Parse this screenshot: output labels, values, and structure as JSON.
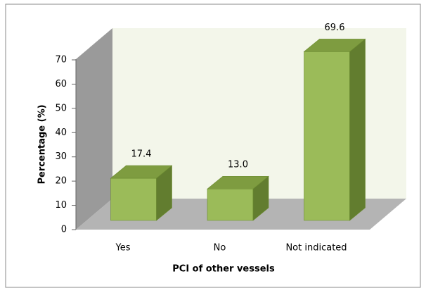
{
  "chart_data": {
    "type": "bar3d",
    "categories": [
      "Yes",
      "No",
      "Not indicated"
    ],
    "values": [
      17.4,
      13.0,
      69.6
    ],
    "value_labels": [
      "17.4",
      "13.0",
      "69.6"
    ],
    "color": "#9bbb59",
    "ylim": [
      0,
      70
    ],
    "yticks": [
      0,
      10,
      20,
      30,
      40,
      50,
      60,
      70
    ],
    "ylabel": "Percentage (%)",
    "xlabel": "PCI of other vessels"
  }
}
